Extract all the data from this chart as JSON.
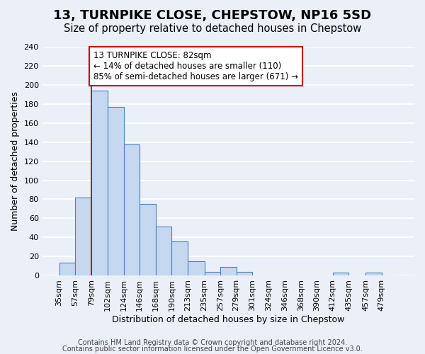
{
  "title": "13, TURNPIKE CLOSE, CHEPSTOW, NP16 5SD",
  "subtitle": "Size of property relative to detached houses in Chepstow",
  "xlabel": "Distribution of detached houses by size in Chepstow",
  "ylabel": "Number of detached properties",
  "bin_labels": [
    "35sqm",
    "57sqm",
    "79sqm",
    "102sqm",
    "124sqm",
    "146sqm",
    "168sqm",
    "190sqm",
    "213sqm",
    "235sqm",
    "257sqm",
    "279sqm",
    "301sqm",
    "324sqm",
    "346sqm",
    "368sqm",
    "390sqm",
    "412sqm",
    "435sqm",
    "457sqm",
    "479sqm"
  ],
  "bar_heights": [
    13,
    82,
    194,
    177,
    138,
    75,
    51,
    36,
    15,
    4,
    9,
    4,
    0,
    0,
    0,
    0,
    0,
    3,
    0,
    3,
    0
  ],
  "bar_color": "#c5d8f0",
  "bar_edge_color": "#4f7fba",
  "vline_color": "#cc0000",
  "annotation_line1": "13 TURNPIKE CLOSE: 82sqm",
  "annotation_line2": "← 14% of detached houses are smaller (110)",
  "annotation_line3": "85% of semi-detached houses are larger (671) →",
  "annotation_box_color": "#ffffff",
  "annotation_box_edge": "#cc0000",
  "ylim": [
    0,
    240
  ],
  "yticks": [
    0,
    20,
    40,
    60,
    80,
    100,
    120,
    140,
    160,
    180,
    200,
    220,
    240
  ],
  "footer1": "Contains HM Land Registry data © Crown copyright and database right 2024.",
  "footer2": "Contains public sector information licensed under the Open Government Licence v3.0.",
  "bg_color": "#eaeff8",
  "grid_color": "#ffffff",
  "title_fontsize": 13,
  "subtitle_fontsize": 10.5,
  "axis_label_fontsize": 9,
  "tick_fontsize": 8,
  "annotation_fontsize": 8.5,
  "footer_fontsize": 7,
  "bin_edges": [
    24,
    46,
    68,
    91,
    113,
    135,
    157,
    179,
    201,
    224,
    246,
    268,
    290,
    312,
    335,
    357,
    379,
    401,
    423,
    446,
    468,
    490
  ]
}
